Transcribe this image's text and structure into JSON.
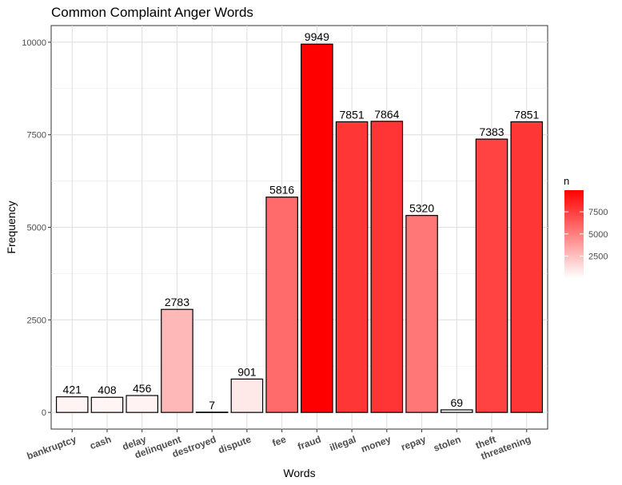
{
  "chart_data": {
    "type": "bar",
    "title": "Common Complaint Anger Words",
    "xlabel": "Words",
    "ylabel": "Frequency",
    "categories": [
      "bankruptcy",
      "cash",
      "delay",
      "delinquent",
      "destroyed",
      "dispute",
      "fee",
      "fraud",
      "illegal",
      "money",
      "repay",
      "stolen",
      "theft",
      "threatening"
    ],
    "values": [
      421,
      408,
      456,
      2783,
      7,
      901,
      5816,
      9949,
      7851,
      7864,
      5320,
      69,
      7383,
      7851
    ],
    "ylim": [
      -450,
      10450
    ],
    "yticks": [
      0,
      2500,
      5000,
      7500,
      10000
    ],
    "ytick_labels": [
      "0",
      "2500",
      "5000",
      "7500",
      "10000"
    ],
    "grid": true,
    "bar_outline_color": "#000000",
    "fill_low_color": "#ffffff",
    "fill_high_color": "#ff0000",
    "legend": {
      "title": "n",
      "placement": "right",
      "ticks": [
        2500,
        5000,
        7500
      ],
      "tick_labels": [
        "2500",
        "5000",
        "7500"
      ],
      "range": [
        7,
        9949
      ]
    }
  }
}
